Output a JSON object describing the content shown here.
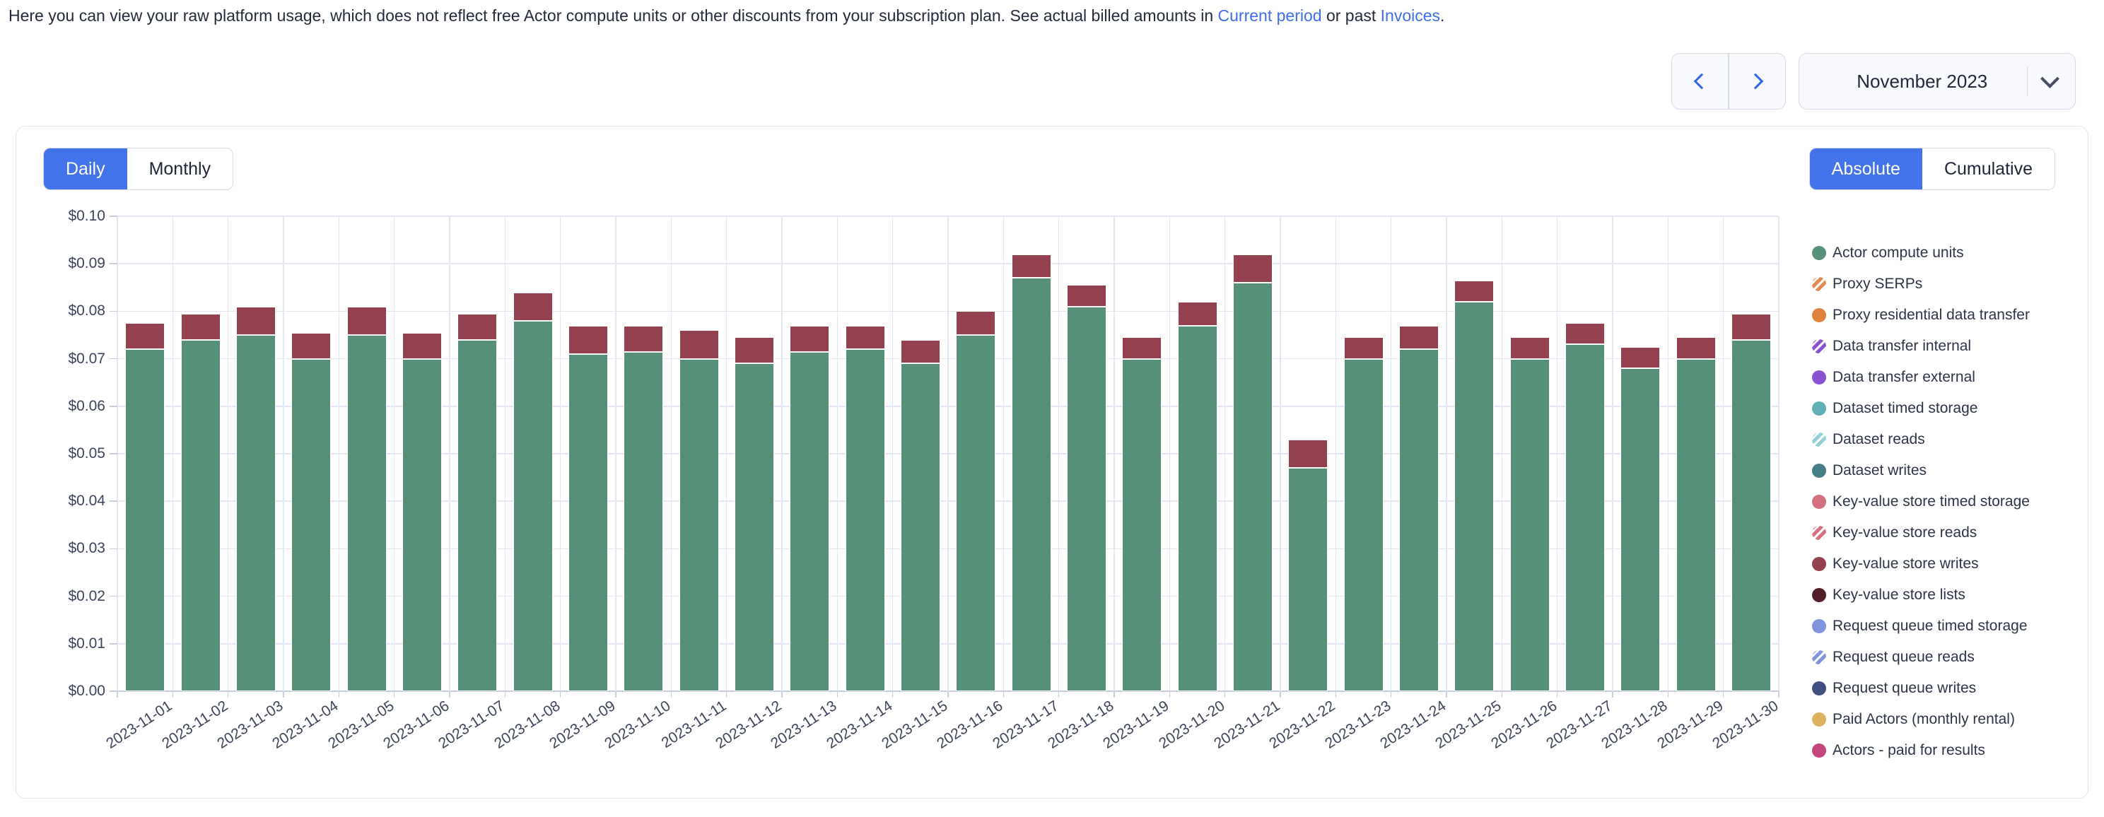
{
  "header": {
    "description": {
      "before_link1": "Here you can view your raw platform usage, which does not reflect free Actor compute units or other discounts from your subscription plan. See actual billed amounts in ",
      "link1": "Current period",
      "between_links": " or past ",
      "link2": "Invoices",
      "after_link2": "."
    },
    "period_select": {
      "value": "November 2023"
    }
  },
  "card": {
    "view_toggle": {
      "options": [
        "Daily",
        "Monthly"
      ],
      "selected": "Daily"
    },
    "mode_toggle": {
      "options": [
        "Absolute",
        "Cumulative"
      ],
      "selected": "Absolute"
    }
  },
  "chart_data": {
    "type": "bar",
    "stacked": true,
    "title": "",
    "xlabel": "",
    "ylabel": "",
    "ylim": [
      0,
      0.1
    ],
    "y_ticks": [
      "$0.00",
      "$0.01",
      "$0.02",
      "$0.03",
      "$0.04",
      "$0.05",
      "$0.06",
      "$0.07",
      "$0.08",
      "$0.09",
      "$0.10"
    ],
    "grid": true,
    "legend_position": "right",
    "x": [
      "2023-11-01",
      "2023-11-02",
      "2023-11-03",
      "2023-11-04",
      "2023-11-05",
      "2023-11-06",
      "2023-11-07",
      "2023-11-08",
      "2023-11-09",
      "2023-11-10",
      "2023-11-11",
      "2023-11-12",
      "2023-11-13",
      "2023-11-14",
      "2023-11-15",
      "2023-11-16",
      "2023-11-17",
      "2023-11-18",
      "2023-11-19",
      "2023-11-20",
      "2023-11-21",
      "2023-11-22",
      "2023-11-23",
      "2023-11-24",
      "2023-11-25",
      "2023-11-26",
      "2023-11-27",
      "2023-11-28",
      "2023-11-29",
      "2023-11-30"
    ],
    "series": [
      {
        "name": "Actor compute units",
        "color": "#579079",
        "values": [
          0.072,
          0.074,
          0.075,
          0.07,
          0.075,
          0.07,
          0.074,
          0.078,
          0.071,
          0.0715,
          0.07,
          0.069,
          0.0715,
          0.072,
          0.069,
          0.075,
          0.087,
          0.081,
          0.07,
          0.077,
          0.086,
          0.047,
          0.07,
          0.072,
          0.082,
          0.07,
          0.073,
          0.068,
          0.07,
          0.074
        ]
      },
      {
        "name": "Key-value store writes",
        "color": "#93404f",
        "values": [
          0.0055,
          0.0055,
          0.006,
          0.0055,
          0.006,
          0.0055,
          0.0055,
          0.006,
          0.006,
          0.0055,
          0.006,
          0.0055,
          0.0055,
          0.005,
          0.005,
          0.005,
          0.005,
          0.0045,
          0.0045,
          0.005,
          0.006,
          0.006,
          0.0045,
          0.005,
          0.0045,
          0.0045,
          0.0045,
          0.0045,
          0.0045,
          0.0055
        ]
      }
    ],
    "legend": [
      {
        "label": "Actor compute units",
        "color": "#579079",
        "striped": false
      },
      {
        "label": "Proxy SERPs",
        "color": "#e18a4f",
        "striped": true
      },
      {
        "label": "Proxy residential data transfer",
        "color": "#df823d",
        "striped": false
      },
      {
        "label": "Data transfer internal",
        "color": "#8a52d1",
        "striped": true
      },
      {
        "label": "Data transfer external",
        "color": "#8a52d1",
        "striped": false
      },
      {
        "label": "Dataset timed storage",
        "color": "#62aeb5",
        "striped": false
      },
      {
        "label": "Dataset reads",
        "color": "#8fd1d6",
        "striped": true
      },
      {
        "label": "Dataset writes",
        "color": "#447f86",
        "striped": false
      },
      {
        "label": "Key-value store timed storage",
        "color": "#d4707f",
        "striped": false
      },
      {
        "label": "Key-value store reads",
        "color": "#d4707f",
        "striped": true
      },
      {
        "label": "Key-value store writes",
        "color": "#93404f",
        "striped": false
      },
      {
        "label": "Key-value store lists",
        "color": "#521f28",
        "striped": false
      },
      {
        "label": "Request queue timed storage",
        "color": "#8094dc",
        "striped": false
      },
      {
        "label": "Request queue reads",
        "color": "#8094dc",
        "striped": true
      },
      {
        "label": "Request queue writes",
        "color": "#404f80",
        "striped": false
      },
      {
        "label": "Paid Actors (monthly rental)",
        "color": "#dcb25e",
        "striped": false
      },
      {
        "label": "Actors - paid for results",
        "color": "#c3477c",
        "striped": false
      }
    ]
  }
}
